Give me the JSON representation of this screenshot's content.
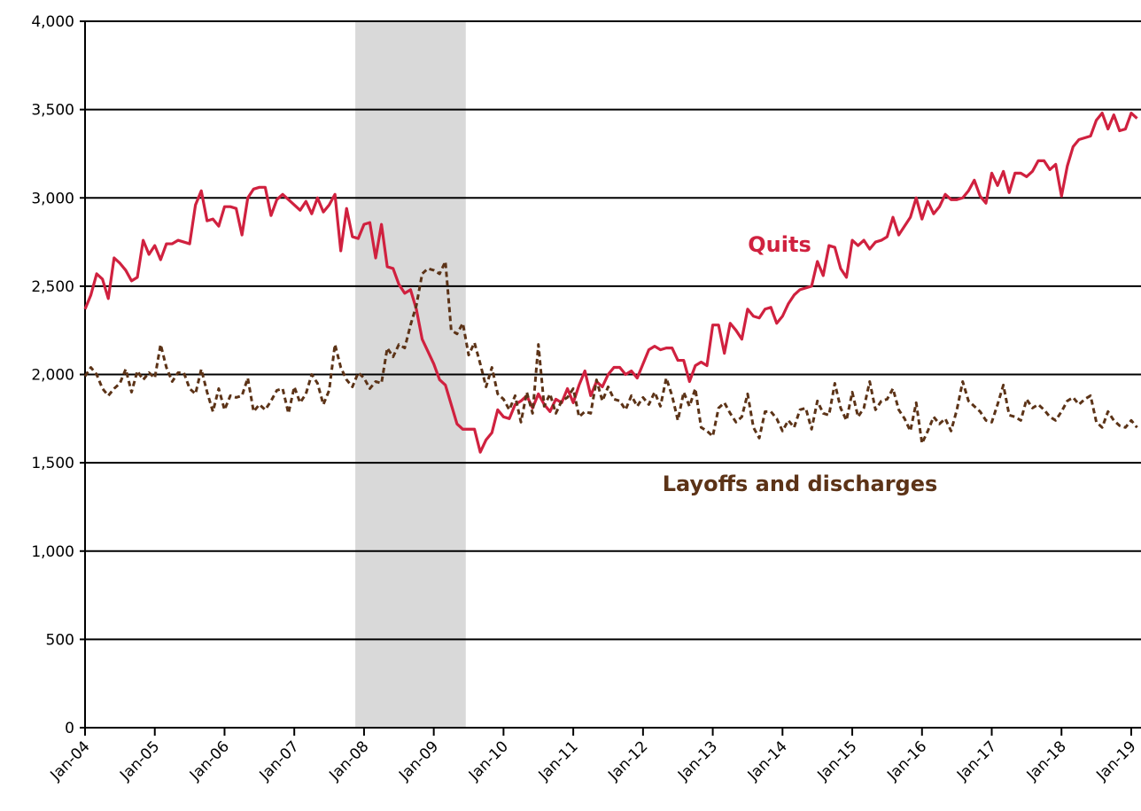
{
  "chart_data": {
    "type": "line",
    "categories": [
      "Jan-04",
      null,
      null,
      null,
      null,
      null,
      null,
      null,
      null,
      null,
      null,
      null,
      "Jan-05",
      null,
      null,
      null,
      null,
      null,
      null,
      null,
      null,
      null,
      null,
      null,
      "Jan-06",
      null,
      null,
      null,
      null,
      null,
      null,
      null,
      null,
      null,
      null,
      null,
      "Jan-07",
      null,
      null,
      null,
      null,
      null,
      null,
      null,
      null,
      null,
      null,
      null,
      "Jan-08",
      null,
      null,
      null,
      null,
      null,
      null,
      null,
      null,
      null,
      null,
      null,
      "Jan-09",
      null,
      null,
      null,
      null,
      null,
      null,
      null,
      null,
      null,
      null,
      null,
      "Jan-10",
      null,
      null,
      null,
      null,
      null,
      null,
      null,
      null,
      null,
      null,
      null,
      "Jan-11",
      null,
      null,
      null,
      null,
      null,
      null,
      null,
      null,
      null,
      null,
      null,
      "Jan-12",
      null,
      null,
      null,
      null,
      null,
      null,
      null,
      null,
      null,
      null,
      null,
      "Jan-13",
      null,
      null,
      null,
      null,
      null,
      null,
      null,
      null,
      null,
      null,
      null,
      "Jan-14",
      null,
      null,
      null,
      null,
      null,
      null,
      null,
      null,
      null,
      null,
      null,
      "Jan-15",
      null,
      null,
      null,
      null,
      null,
      null,
      null,
      null,
      null,
      null,
      null,
      "Jan-16",
      null,
      null,
      null,
      null,
      null,
      null,
      null,
      null,
      null,
      null,
      null,
      "Jan-17",
      null,
      null,
      null,
      null,
      null,
      null,
      null,
      null,
      null,
      null,
      null,
      "Jan-18",
      null,
      null,
      null,
      null,
      null,
      null,
      null,
      null,
      null,
      null,
      null,
      "Jan-19",
      null
    ],
    "series": [
      {
        "name": "Quits",
        "color": "#d0213f",
        "dashed": false,
        "values": [
          2370,
          2450,
          2570,
          2540,
          2430,
          2660,
          2630,
          2590,
          2530,
          2550,
          2760,
          2680,
          2730,
          2650,
          2740,
          2740,
          2760,
          2750,
          2740,
          2960,
          3040,
          2870,
          2880,
          2840,
          2950,
          2950,
          2940,
          2790,
          3000,
          3050,
          3060,
          3060,
          2900,
          2990,
          3020,
          2990,
          2960,
          2930,
          2980,
          2910,
          3000,
          2920,
          2960,
          3020,
          2700,
          2940,
          2780,
          2770,
          2850,
          2860,
          2660,
          2850,
          2610,
          2600,
          2510,
          2460,
          2480,
          2370,
          2200,
          2130,
          2060,
          1970,
          1940,
          1830,
          1720,
          1690,
          1690,
          1690,
          1560,
          1630,
          1670,
          1800,
          1760,
          1750,
          1830,
          1850,
          1880,
          1810,
          1890,
          1830,
          1790,
          1860,
          1840,
          1920,
          1840,
          1940,
          2020,
          1880,
          1960,
          1930,
          2000,
          2040,
          2040,
          2000,
          2020,
          1980,
          2060,
          2140,
          2160,
          2140,
          2150,
          2150,
          2080,
          2080,
          1960,
          2050,
          2070,
          2050,
          2280,
          2280,
          2120,
          2290,
          2250,
          2200,
          2370,
          2330,
          2320,
          2370,
          2380,
          2290,
          2330,
          2400,
          2450,
          2480,
          2490,
          2500,
          2640,
          2560,
          2730,
          2720,
          2600,
          2550,
          2760,
          2730,
          2760,
          2710,
          2750,
          2760,
          2780,
          2890,
          2790,
          2840,
          2890,
          3000,
          2880,
          2980,
          2910,
          2950,
          3020,
          2990,
          2990,
          3000,
          3040,
          3100,
          3010,
          2970,
          3140,
          3070,
          3150,
          3030,
          3140,
          3140,
          3120,
          3150,
          3210,
          3210,
          3160,
          3190,
          3010,
          3180,
          3290,
          3330,
          3340,
          3350,
          3440,
          3480,
          3390,
          3470,
          3380,
          3390,
          3480,
          3450
        ]
      },
      {
        "name": "Layoffs and discharges",
        "color": "#5c3317",
        "dashed": true,
        "values": [
          1990,
          2040,
          2000,
          1920,
          1880,
          1920,
          1950,
          2030,
          1900,
          2020,
          1970,
          2010,
          1980,
          2170,
          2040,
          1960,
          2010,
          2010,
          1920,
          1890,
          2030,
          1900,
          1790,
          1920,
          1800,
          1880,
          1870,
          1880,
          1980,
          1790,
          1830,
          1800,
          1850,
          1910,
          1920,
          1780,
          1930,
          1840,
          1890,
          2000,
          1950,
          1830,
          1910,
          2170,
          2040,
          1970,
          1930,
          2010,
          1980,
          1920,
          1960,
          1950,
          2150,
          2100,
          2170,
          2150,
          2280,
          2390,
          2570,
          2600,
          2590,
          2570,
          2640,
          2250,
          2230,
          2290,
          2110,
          2180,
          2060,
          1930,
          2040,
          1890,
          1860,
          1800,
          1880,
          1730,
          1900,
          1780,
          2170,
          1820,
          1890,
          1780,
          1850,
          1870,
          1920,
          1760,
          1790,
          1780,
          1970,
          1850,
          1930,
          1860,
          1850,
          1800,
          1880,
          1820,
          1870,
          1830,
          1900,
          1820,
          1980,
          1880,
          1740,
          1900,
          1820,
          1920,
          1700,
          1680,
          1650,
          1810,
          1840,
          1780,
          1730,
          1760,
          1890,
          1700,
          1640,
          1790,
          1790,
          1750,
          1680,
          1740,
          1700,
          1800,
          1810,
          1690,
          1850,
          1780,
          1770,
          1950,
          1810,
          1740,
          1900,
          1760,
          1810,
          1960,
          1800,
          1850,
          1860,
          1920,
          1800,
          1750,
          1680,
          1840,
          1610,
          1680,
          1760,
          1720,
          1750,
          1680,
          1800,
          1960,
          1850,
          1820,
          1790,
          1740,
          1730,
          1830,
          1940,
          1770,
          1760,
          1740,
          1860,
          1810,
          1830,
          1800,
          1760,
          1740,
          1790,
          1850,
          1870,
          1830,
          1860,
          1880,
          1730,
          1700,
          1790,
          1740,
          1710,
          1700,
          1740,
          1700
        ]
      }
    ],
    "ylim": [
      0,
      4000
    ],
    "yticks": [
      0,
      500,
      {
        "value": 1000,
        "label": "1,000"
      },
      {
        "value": 1500,
        "label": "1,500"
      },
      {
        "value": 2000,
        "label": "2,000"
      },
      {
        "value": 2500,
        "label": "2,500"
      },
      {
        "value": 3000,
        "label": "3,000"
      },
      {
        "value": 3500,
        "label": "3,500"
      },
      {
        "value": 4000,
        "label": "4,000"
      }
    ],
    "grid": true,
    "shaded": {
      "from": 47,
      "to": 66,
      "color": "#d9d9d9"
    },
    "annotations": [
      {
        "text": "Quits",
        "series": 0
      },
      {
        "text": "Layoffs and discharges",
        "series": 1
      }
    ]
  }
}
